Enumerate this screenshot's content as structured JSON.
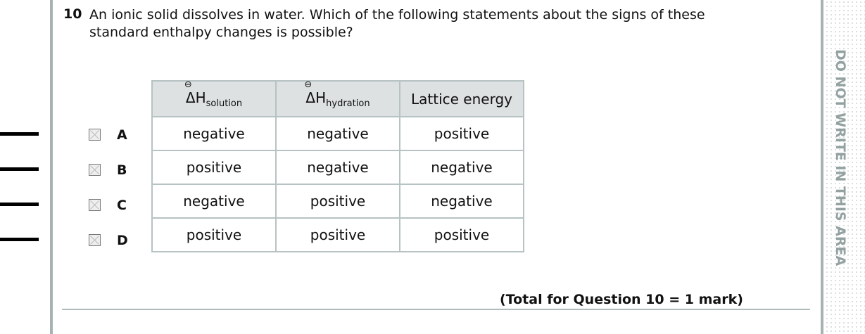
{
  "question": {
    "number": "10",
    "text": "An ionic solid dissolves in water.  Which of the following statements about the signs of these standard enthalpy changes is possible?"
  },
  "table": {
    "headers": [
      {
        "symbol": "ΔH",
        "superscript": "⊖",
        "subscript": "solution"
      },
      {
        "symbol": "ΔH",
        "superscript": "⊖",
        "subscript": "hydration"
      },
      {
        "label": "Lattice energy"
      }
    ],
    "rows": [
      {
        "option": "A",
        "cells": [
          "negative",
          "negative",
          "positive"
        ]
      },
      {
        "option": "B",
        "cells": [
          "positive",
          "negative",
          "negative"
        ]
      },
      {
        "option": "C",
        "cells": [
          "negative",
          "positive",
          "negative"
        ]
      },
      {
        "option": "D",
        "cells": [
          "positive",
          "positive",
          "positive"
        ]
      }
    ]
  },
  "total": "(Total for Question 10 = 1 mark)",
  "margin_text": "DO NOT WRITE IN THIS AREA",
  "colors": {
    "rule": "#a7b3b3",
    "header_bg": "#dde1e1",
    "margin_text": "#93a1a1"
  }
}
